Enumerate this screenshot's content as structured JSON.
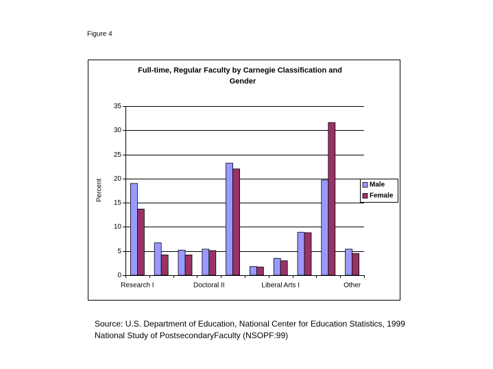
{
  "figure_label": "Figure 4",
  "source": [
    "Source: U.S. Department of Education, National Center for Education Statistics, 1999",
    "National Study of PostsecondaryFaculty (NSOPF:99)"
  ],
  "chart_data": {
    "type": "bar",
    "title": [
      "Full-time, Regular Faculty by Carnegie Classification and",
      "Gender"
    ],
    "y_label": "Percent",
    "categories": [
      "Research I",
      null,
      null,
      "Doctoral II",
      null,
      null,
      "Liberal Arts I",
      null,
      null,
      "Other"
    ],
    "series": [
      {
        "name": "Male",
        "color": "#9999ff",
        "values": [
          19.0,
          6.7,
          5.2,
          5.4,
          23.2,
          1.8,
          3.5,
          8.9,
          19.7,
          5.4
        ]
      },
      {
        "name": "Female",
        "color": "#993366",
        "values": [
          13.7,
          4.2,
          4.2,
          5.1,
          22.0,
          1.7,
          3.0,
          8.8,
          31.6,
          4.5
        ]
      }
    ],
    "ylim": [
      0,
      35
    ],
    "yticks": [
      0,
      5,
      10,
      15,
      20,
      25,
      30,
      35
    ],
    "grid": true,
    "legend": "right"
  }
}
